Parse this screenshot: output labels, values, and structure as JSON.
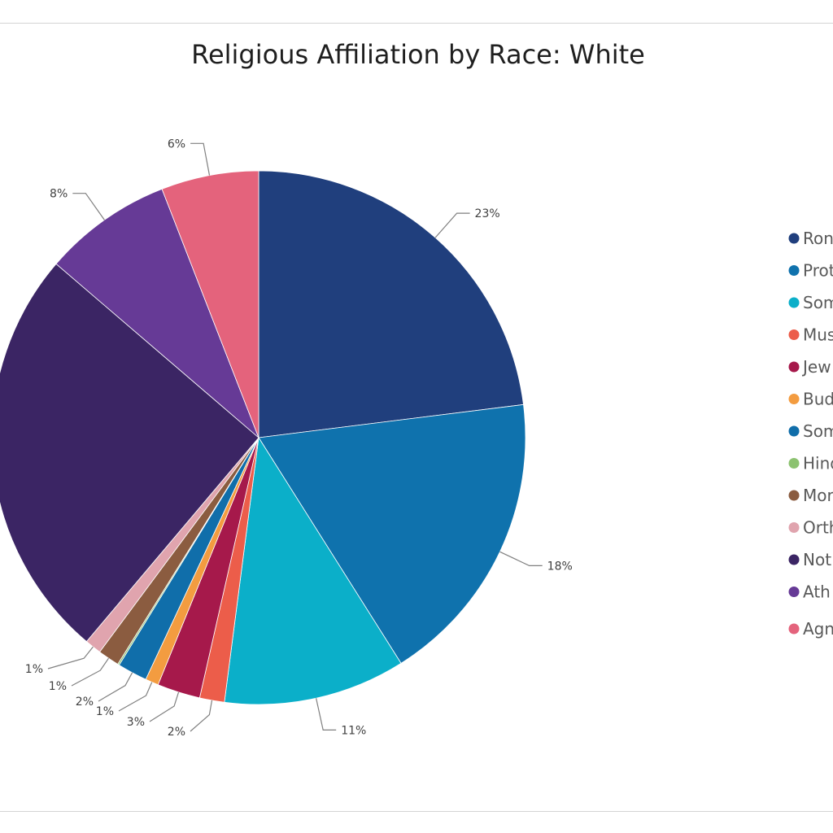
{
  "chart_data": {
    "type": "pie",
    "title": "Religious Affiliation by Race: White",
    "legend_position": "right",
    "slices": [
      {
        "legend_label": "Ron",
        "value": 23,
        "label": "23%",
        "color": "#203f7d"
      },
      {
        "legend_label": "Prot",
        "value": 18,
        "label": "18%",
        "color": "#0f72ad"
      },
      {
        "legend_label": "Som",
        "value": 11,
        "label": "11%",
        "color": "#0bafc9"
      },
      {
        "legend_label": "Mus",
        "value": 1.5,
        "label": "2%",
        "color": "#ec5d4a"
      },
      {
        "legend_label": "Jew",
        "value": 2.6,
        "label": "3%",
        "color": "#a6194b"
      },
      {
        "legend_label": "Bud",
        "value": 0.8,
        "label": "1%",
        "color": "#f39c40"
      },
      {
        "legend_label": "Som",
        "value": 1.8,
        "label": "2%",
        "color": "#106eaa"
      },
      {
        "legend_label": "Hind",
        "value": 0.1,
        "label": "",
        "color": "#8cc270"
      },
      {
        "legend_label": "Mor",
        "value": 1.3,
        "label": "1%",
        "color": "#8b5c40"
      },
      {
        "legend_label": "Orth",
        "value": 1.0,
        "label": "1%",
        "color": "#e0a4ae"
      },
      {
        "legend_label": "Not",
        "value": 25.1,
        "label": "",
        "color": "#3b2564"
      },
      {
        "legend_label": "Ath",
        "value": 7.8,
        "label": "8%",
        "color": "#663a96"
      },
      {
        "legend_label": "Agn",
        "value": 5.9,
        "label": "6%",
        "color": "#e4637c"
      }
    ]
  }
}
